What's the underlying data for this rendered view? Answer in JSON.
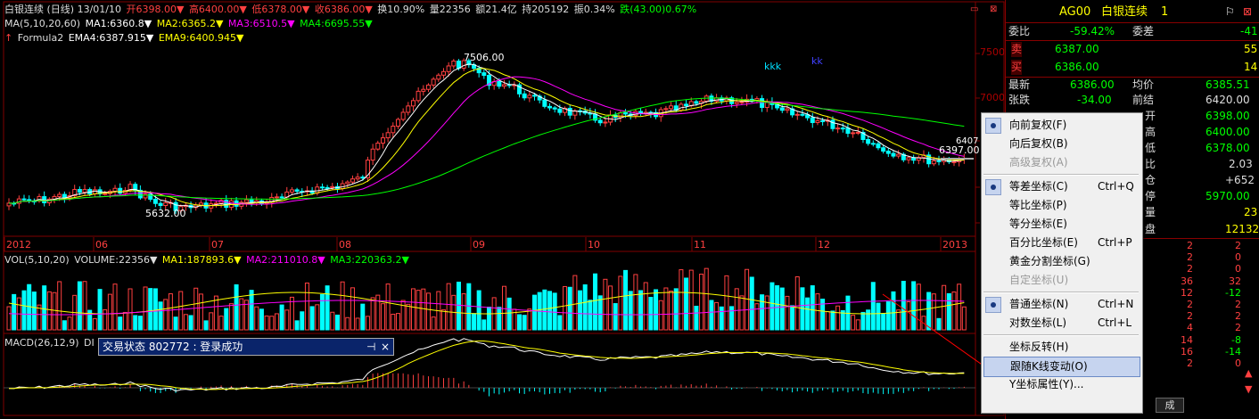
{
  "header": {
    "line1": [
      "白银连续 (日线) 13/01/10",
      "开6398.00▼",
      "高6400.00▼",
      "低6378.00▼",
      "收6386.00▼",
      "换10.90%",
      "量22356",
      "额21.4亿",
      "持205192",
      "振0.34%",
      "跌(43.00)0.67%"
    ],
    "ma_line": [
      "MA(5,10,20,60)",
      "MA1:6360.8▼",
      "MA2:6365.2▼",
      "MA3:6510.5▼",
      "MA4:6695.55▼"
    ],
    "formula_line": [
      "Formula2",
      "EMA4:6387.915▼",
      "EMA9:6400.945▼"
    ]
  },
  "price_axis": [
    "7500",
    "7000",
    "6407"
  ],
  "annotations": {
    "high_label": "7506.00",
    "low_label": "5632.00",
    "last_label": "6397.00",
    "five": "5",
    "kkk": "kkk",
    "kk": "kk",
    "r": "r"
  },
  "x_axis": [
    "2012",
    "06",
    "07",
    "08",
    "09",
    "10",
    "11",
    "12",
    "2013"
  ],
  "vol_header": [
    "VOL(5,10,20)",
    "VOLUME:22356▼",
    "MA1:187893.6▼",
    "MA2:211010.8▼",
    "MA3:220363.2▼"
  ],
  "macd_header": [
    "MACD(26,12,9)",
    "DI"
  ],
  "toast": {
    "title": "交易状态 802772 : 登录成功",
    "pin": "⊣",
    "close": "×"
  },
  "quote": {
    "code": "AG00",
    "name": "白银连续",
    "num": "1",
    "weibi_label": "委比",
    "weibi": "-59.42%",
    "weicha_label": "委差",
    "weicha": "-41",
    "sell_label": "卖",
    "sell_price": "6387.00",
    "sell_vol": "55",
    "buy_label": "买",
    "buy_price": "6386.00",
    "buy_vol": "14",
    "rows": [
      {
        "l1": "最新",
        "v1": "6386.00",
        "l2": "均价",
        "v2": "6385.51"
      },
      {
        "l1": "张跌",
        "v1": "-34.00",
        "l2": "前结",
        "v2": "6420.00"
      },
      {
        "l2": "开",
        "v2": "6398.00"
      },
      {
        "l2": "高",
        "v2": "6400.00"
      },
      {
        "l2": "低",
        "v2": "6378.00"
      },
      {
        "l2": "比",
        "v2": "2.03"
      },
      {
        "l2": "仓",
        "v2": "+652"
      },
      {
        "l2": "停",
        "v2": "5970.00"
      },
      {
        "l2": "量",
        "v2": "23"
      },
      {
        "l2": "盘",
        "v2": "12132"
      }
    ],
    "ticks": [
      [
        "2",
        "2"
      ],
      [
        "2",
        "0"
      ],
      [
        "2",
        "0"
      ],
      [
        "36",
        "32"
      ],
      [
        "12",
        "-12"
      ],
      [
        "2",
        "2"
      ],
      [
        "2",
        "2"
      ],
      [
        "4",
        "2"
      ],
      [
        "14",
        "-8"
      ],
      [
        "16",
        "-14"
      ],
      [
        "2",
        "0"
      ]
    ],
    "tab": "成"
  },
  "menu": [
    {
      "label": "向前复权(F)",
      "checked": true
    },
    {
      "label": "向后复权(B)"
    },
    {
      "label": "高级复权(A)",
      "disabled": true
    },
    {
      "sep": true
    },
    {
      "label": "等差坐标(C)",
      "shortcut": "Ctrl+Q",
      "checked": true
    },
    {
      "label": "等比坐标(P)"
    },
    {
      "label": "等分坐标(E)"
    },
    {
      "label": "百分比坐标(E)",
      "shortcut": "Ctrl+P"
    },
    {
      "label": "黄金分割坐标(G)"
    },
    {
      "label": "自定坐标(U)",
      "disabled": true
    },
    {
      "sep": true
    },
    {
      "label": "普通坐标(N)",
      "shortcut": "Ctrl+N",
      "checked": true
    },
    {
      "label": "对数坐标(L)",
      "shortcut": "Ctrl+L"
    },
    {
      "sep": true
    },
    {
      "label": "坐标反转(H)"
    },
    {
      "label": "跟随K线变动(O)",
      "selected": true
    },
    {
      "label": "Y坐标属性(Y)..."
    }
  ],
  "colors": {
    "up": "#ff4040",
    "down": "#00ffff",
    "ma1": "#ffffff",
    "ma2": "#ffff00",
    "ma3": "#ff00ff",
    "ma4": "#00ff00",
    "grid": "#800000"
  }
}
